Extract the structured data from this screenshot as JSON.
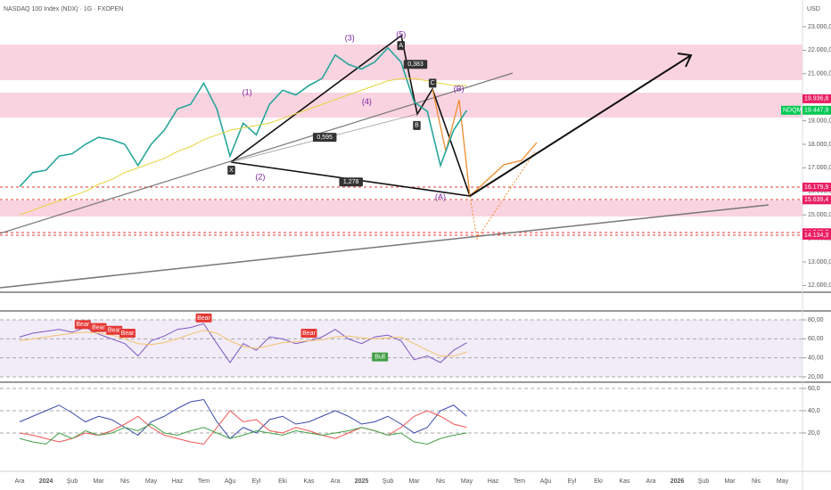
{
  "chart_data": [
    {
      "type": "line",
      "title": "NASDAQ 100 Index (NDX) · 1G · FXOPEN",
      "unit": "USD",
      "symbol_tag": "NDQM",
      "categories": [
        "Ara",
        null,
        "2024",
        null,
        "Şub",
        null,
        "Mar",
        null,
        "Nis",
        null,
        "May",
        null,
        "Haz",
        null,
        "Tem",
        null,
        "Ağu",
        null,
        "Eyl",
        null,
        "Eki",
        null,
        "Kas",
        null,
        "Ara",
        null,
        "2025",
        null,
        "Şub",
        null,
        "Mar",
        null,
        "Nis",
        null,
        "May",
        null,
        "Haz",
        null,
        "Tem",
        null,
        "Ağu",
        null,
        "Eyl",
        null,
        "Eki",
        null,
        "Kas",
        null,
        "Ara",
        null,
        "2026",
        null,
        "Şub",
        null,
        "Mar",
        null,
        "Nis",
        null,
        "May",
        null
      ],
      "series": [
        {
          "name": "NDX",
          "color": "#26a69a",
          "values": [
            16200,
            16800,
            16900,
            17500,
            17600,
            18000,
            18300,
            18200,
            18000,
            17100,
            18000,
            18600,
            19500,
            19700,
            20600,
            19500,
            17500,
            18900,
            18400,
            19700,
            20300,
            20100,
            20500,
            20800,
            21800,
            21400,
            21200,
            21500,
            22100,
            21500,
            19800,
            19400,
            17100,
            18600,
            19448,
            null,
            null,
            null,
            null,
            null,
            null,
            null,
            null,
            null,
            null,
            null,
            null,
            null,
            null,
            null,
            null,
            null,
            null,
            null,
            null,
            null,
            null,
            null,
            null,
            null
          ]
        },
        {
          "name": "MA 200",
          "color": "#e6d33a",
          "values": [
            15000,
            15200,
            15400,
            15600,
            15800,
            16000,
            16300,
            16500,
            16800,
            17000,
            17200,
            17400,
            17700,
            17900,
            18200,
            18400,
            18600,
            18700,
            18800,
            18900,
            19100,
            19300,
            19500,
            19700,
            19900,
            20100,
            20300,
            20500,
            20700,
            20800,
            20800,
            20700,
            20600,
            20500,
            20500,
            null,
            null,
            null,
            null,
            null,
            null,
            null,
            null,
            null,
            null,
            null,
            null,
            null,
            null,
            null,
            null,
            null,
            null,
            null,
            null,
            null,
            null,
            null,
            null,
            null
          ]
        }
      ],
      "ylim": [
        11712,
        24136
      ],
      "yticks": [
        {
          "value": 23000,
          "label": "23.000,0"
        },
        {
          "value": 22000,
          "label": "22.000,0"
        },
        {
          "value": 21000,
          "label": "21.000,0"
        },
        {
          "value": 20000,
          "label": "20.000,0"
        },
        {
          "value": 19000,
          "label": "19.000,0"
        },
        {
          "value": 18000,
          "label": "18.000,0"
        },
        {
          "value": 17000,
          "label": "17.000,0"
        },
        {
          "value": 16000,
          "label": "16.000,0"
        },
        {
          "value": 15000,
          "label": "15.000,0"
        },
        {
          "value": 14000,
          "label": "14.000,0"
        },
        {
          "value": 13000,
          "label": "13.000,0"
        },
        {
          "value": 12000,
          "label": "12.000,0"
        }
      ],
      "price_labels": [
        {
          "value": 19936.8,
          "label": "19.936,8",
          "color": "#e91e63"
        },
        {
          "value": 19447.9,
          "label": "19.447,9",
          "color": "#00c853"
        },
        {
          "value": 16179.9,
          "label": "16.179,9",
          "color": "#e91e63"
        },
        {
          "value": 15639.4,
          "label": "15.639,4",
          "color": "#e91e63"
        },
        {
          "value": 14240.3,
          "label": "14.240,3",
          "color": "#e91e63"
        },
        {
          "value": 14134.3,
          "label": "14.134,3",
          "color": "#e91e63"
        }
      ],
      "wave_labels": [
        {
          "text": "(3)",
          "x": 25.1,
          "y": 22500
        },
        {
          "text": "(5)",
          "x": 29.0,
          "y": 22650
        },
        {
          "text": "(1)",
          "x": 17.3,
          "y": 20200
        },
        {
          "text": "(2)",
          "x": 18.3,
          "y": 16600
        },
        {
          "text": "(4)",
          "x": 26.4,
          "y": 19800
        },
        {
          "text": "(A)",
          "x": 32.0,
          "y": 15750
        },
        {
          "text": "(B)",
          "x": 33.4,
          "y": 20350
        }
      ],
      "point_labels": [
        {
          "text": "A",
          "x": 29.0,
          "y": 22200
        },
        {
          "text": "X",
          "x": 16.1,
          "y": 16900
        },
        {
          "text": "B",
          "x": 30.2,
          "y": 18800
        },
        {
          "text": "C",
          "x": 31.4,
          "y": 20600
        },
        {
          "text": "0,383",
          "x": 30.1,
          "y": 21400
        },
        {
          "text": "0,595",
          "x": 23.2,
          "y": 18300
        },
        {
          "text": "1,278",
          "x": 25.2,
          "y": 16400
        }
      ]
    },
    {
      "type": "line",
      "series": [
        {
          "name": "RSI",
          "color": "#7e57c2",
          "values": [
            62,
            66,
            68,
            70,
            67,
            72,
            65,
            60,
            55,
            42,
            58,
            63,
            70,
            72,
            76,
            55,
            35,
            55,
            48,
            62,
            60,
            55,
            58,
            62,
            70,
            60,
            55,
            62,
            64,
            58,
            38,
            42,
            35,
            48,
            56
          ]
        },
        {
          "name": "RSI MA",
          "color": "#f5c26b",
          "values": [
            58,
            60,
            62,
            64,
            66,
            67,
            66,
            64,
            60,
            55,
            54,
            56,
            60,
            65,
            69,
            66,
            58,
            52,
            50,
            53,
            56,
            57,
            58,
            59,
            62,
            63,
            61,
            60,
            61,
            62,
            55,
            48,
            42,
            42,
            46
          ]
        }
      ],
      "ylim": [
        15.3,
        88.5
      ],
      "yticks": [
        {
          "value": 80,
          "label": "80,00"
        },
        {
          "value": 60,
          "label": "60,00"
        },
        {
          "value": 40,
          "label": "40,00"
        },
        {
          "value": 20,
          "label": "20,00"
        }
      ],
      "signals": [
        {
          "text": "Bear",
          "x": 4.8,
          "y": 75
        },
        {
          "text": "Bear",
          "x": 6.0,
          "y": 72
        },
        {
          "text": "Bear",
          "x": 7.2,
          "y": 69
        },
        {
          "text": "Bear",
          "x": 8.2,
          "y": 66
        },
        {
          "text": "Bear",
          "x": 14.0,
          "y": 82
        },
        {
          "text": "Bear",
          "x": 22.0,
          "y": 66
        },
        {
          "text": "Bull",
          "x": 27.4,
          "y": 41
        }
      ]
    },
    {
      "type": "line",
      "series": [
        {
          "name": "Blue",
          "color": "#3949ab",
          "values": [
            30,
            35,
            40,
            45,
            38,
            30,
            35,
            32,
            25,
            18,
            30,
            35,
            42,
            48,
            50,
            30,
            15,
            25,
            20,
            32,
            35,
            28,
            30,
            35,
            40,
            35,
            28,
            30,
            35,
            28,
            20,
            25,
            40,
            45,
            35
          ]
        },
        {
          "name": "Red",
          "color": "#ef5350",
          "values": [
            20,
            18,
            15,
            12,
            15,
            20,
            18,
            22,
            28,
            35,
            25,
            18,
            15,
            12,
            10,
            25,
            40,
            30,
            32,
            22,
            20,
            25,
            22,
            18,
            15,
            20,
            25,
            22,
            18,
            25,
            35,
            40,
            35,
            28,
            25
          ]
        },
        {
          "name": "Green",
          "color": "#43a047",
          "values": [
            15,
            12,
            10,
            20,
            15,
            22,
            18,
            20,
            25,
            22,
            28,
            20,
            18,
            22,
            25,
            20,
            15,
            18,
            22,
            20,
            18,
            22,
            20,
            18,
            20,
            22,
            25,
            22,
            18,
            20,
            12,
            10,
            15,
            18,
            20
          ]
        }
      ],
      "ylim": [
        -13.6,
        64.8
      ],
      "yticks": [
        {
          "value": 60,
          "label": "60,0"
        },
        {
          "value": 40,
          "label": "40,0"
        },
        {
          "value": 20,
          "label": "20,0"
        }
      ]
    }
  ]
}
